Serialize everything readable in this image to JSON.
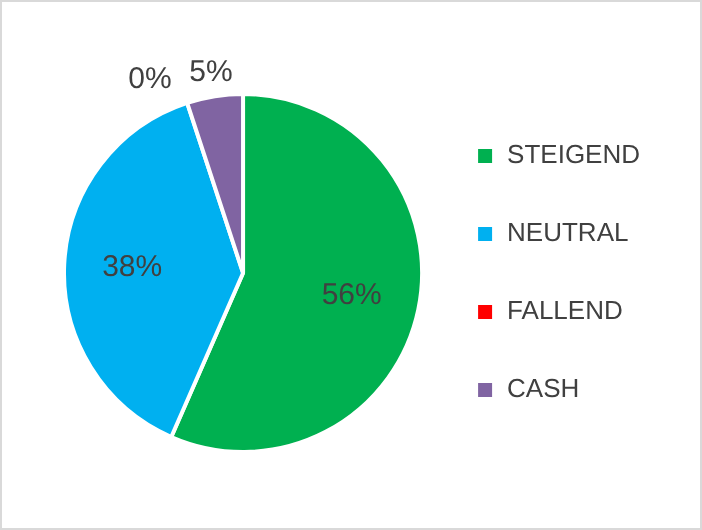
{
  "chart_data": {
    "type": "pie",
    "categories": [
      "STEIGEND",
      "NEUTRAL",
      "FALLEND",
      "CASH"
    ],
    "values": [
      56,
      38,
      0,
      5
    ],
    "colors": [
      "#00b050",
      "#00b0f0",
      "#ff0000",
      "#8064a2"
    ],
    "value_labels": [
      "56%",
      "38%",
      "0%",
      "5%"
    ],
    "legend": "right"
  }
}
